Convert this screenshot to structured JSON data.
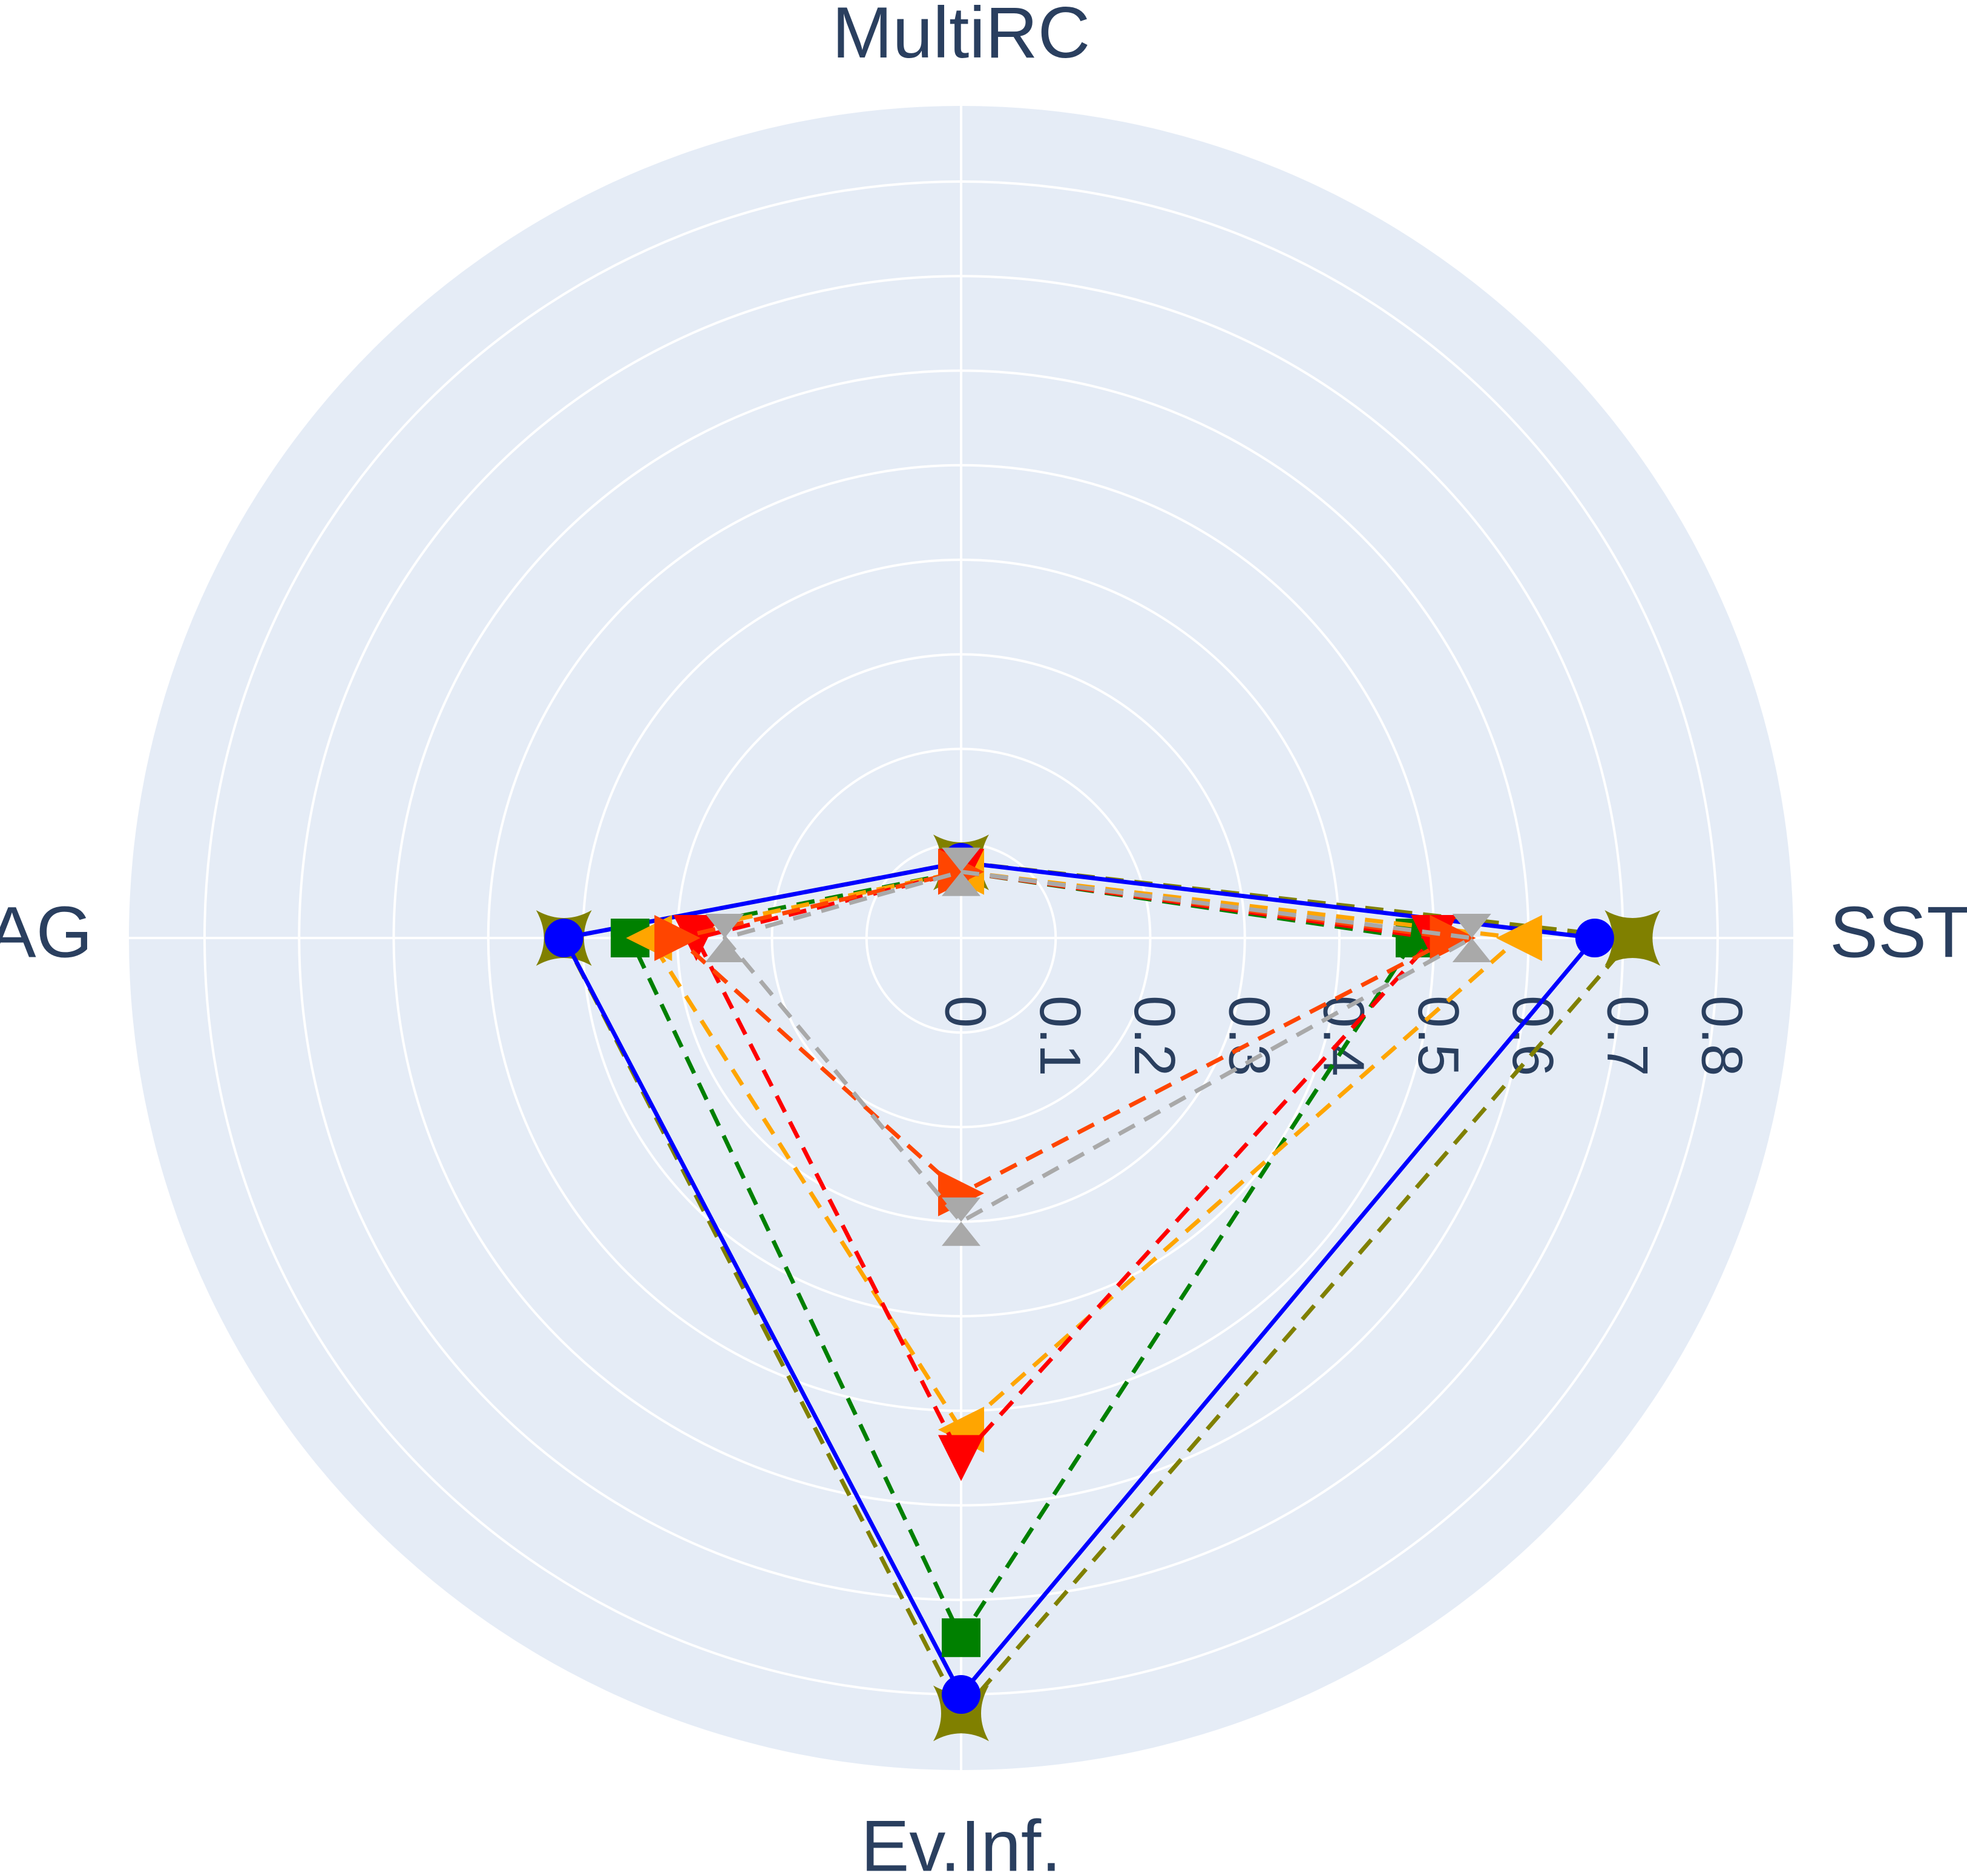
{
  "chart_data": {
    "type": "radar",
    "title": "",
    "axes": [
      "MultiRC",
      "SST",
      "Ev.Inf.",
      "AG"
    ],
    "radial_ticks": [
      "0",
      "0.1",
      "0.2",
      "0.3",
      "0.4",
      "0.5",
      "0.6",
      "0.7",
      "0.8"
    ],
    "rlim": [
      0,
      0.88
    ],
    "grid": true,
    "legend": "none",
    "colors": {
      "background": "#e5ecf6",
      "grid": "#ffffff",
      "text": "#2a3f5f"
    },
    "series": [
      {
        "color": "#808000",
        "marker": "star4",
        "dash": true,
        "values": [
          0.08,
          0.71,
          0.82,
          0.42
        ]
      },
      {
        "color": "#0000ff",
        "marker": "circle",
        "dash": false,
        "values": [
          0.08,
          0.67,
          0.8,
          0.42
        ]
      },
      {
        "color": "#008000",
        "marker": "square",
        "dash": true,
        "values": [
          0.07,
          0.48,
          0.74,
          0.35
        ]
      },
      {
        "color": "#ffa500",
        "marker": "triangle-left",
        "dash": true,
        "values": [
          0.07,
          0.59,
          0.52,
          0.33
        ]
      },
      {
        "color": "#ff0000",
        "marker": "triangle-down",
        "dash": true,
        "values": [
          0.07,
          0.5,
          0.55,
          0.28
        ]
      },
      {
        "color": "#ff4500",
        "marker": "triangle-right",
        "dash": true,
        "values": [
          0.07,
          0.52,
          0.27,
          0.3
        ]
      },
      {
        "color": "#a9a9a9",
        "marker": "hourglass",
        "dash": true,
        "values": [
          0.07,
          0.54,
          0.3,
          0.25
        ]
      }
    ]
  }
}
